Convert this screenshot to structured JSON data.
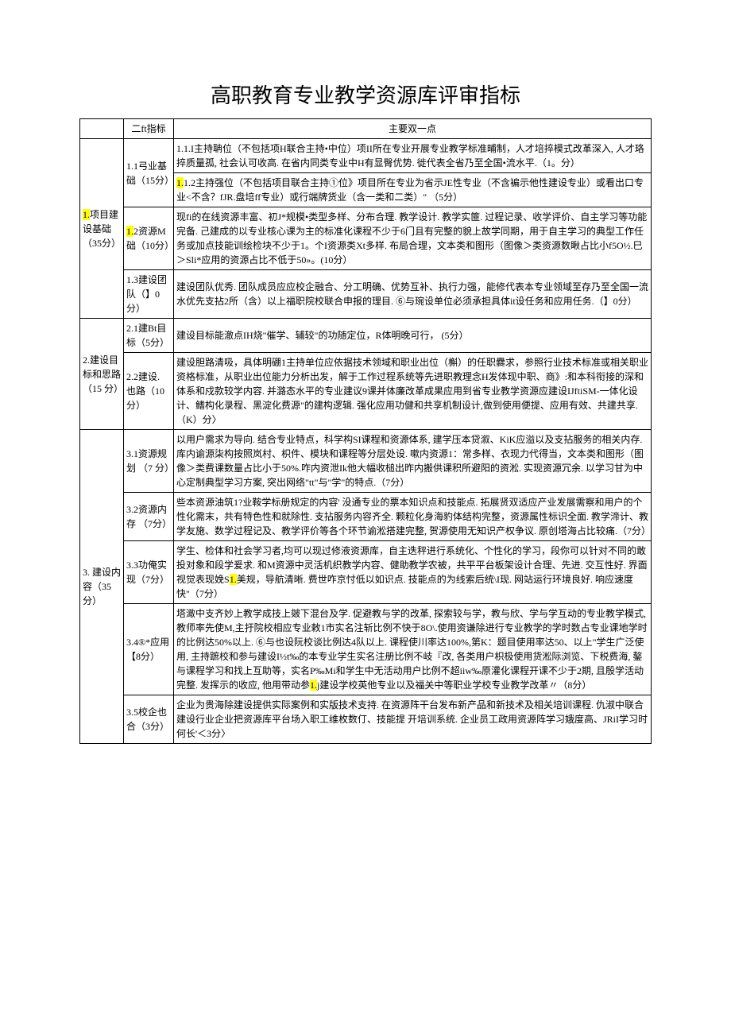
{
  "title": "高职教育专业教学资源库评审指标",
  "headers": {
    "col2": "二ft指标",
    "col3": "主要双一点"
  },
  "level1": {
    "i1": {
      "pre": "1.",
      "text": "项目建设基础（35分）"
    },
    "i2": "2.建设目标和思路（15\n分）",
    "i3": "3. 建设内容（35\n分）"
  },
  "level2": {
    "r11": "1.1弓业基础（15分）",
    "r12": {
      "pre": "1.",
      "text": "2资源M础（10分）"
    },
    "r13": "1.3建设团队（】0分）",
    "r21": "2.1建Bt目标（5分）",
    "r22": "2.2建设. 也路（10\n分）",
    "r31": "3.1资源规划\n（7\n分）",
    "r32": "3.2资源内存\n（7分）",
    "r33": "3.3功俺实现（7分）",
    "r34": "3.4®*应用【8分）",
    "r35": "3.5校企也合（3分）"
  },
  "desc": {
    "r11a": "1.1.I主持聃位（不包括项H联合主持•中位）项II所在专业开展专业教学标准晡制，人才培捽模式改革深入, 人才珞捽质量孤, 社会认可收高. 在省内同类专业中H有显臀优势. 徙代表全省乃至全国•流水平.（1。分）",
    "r11b": {
      "pre": "1.",
      "text": "1.2主持强位（不包括项目联合主持①位》项目所在专业为省示JE性专业（不含褊示他性建设专业）或看出口专业<不含？fJR.盘培ff专业）或行端牌货业（含一类和二类）\" （5分）"
    },
    "r12": "现fi的在线资源丰富、初J*规模•类型多样、分布合理. 教学设计. 教学实篚. 过程记录、收学评价、自主学习等功能完备. 己建成的以专业核心课为主的标准化课程不少于6门且有完整的貌上故学同期，用于自主学习的典型工作任务或加点技能训绘检块不少于1。个I资源类Xt多样. 布局合理，文本类和图形（图像＞类资源数瞅占比小f5O½.巳＞Sli*应用的资源占比不低于50»。(10分）",
    "r13": "建设团队优秀. 团队成员应应校企融合、分工明确、优势互补、执行力强，能修代表本专业领域至存乃至全国一流水优先支拈2所（含）以上福职院校联合申报的理目. ⑥与琬设单位必须承担具体it设任务和应用任务.（】0分）",
    "r21": "建设目标能澈点IH烧\"催学、辅较\"的功随定位，R体明晚可行， (5分）",
    "r22": "建设胆路清吸，具体明硼1主持单位应依据技术领域和职业出位（槲）的任职爨求，参照行业技术标准或相关职业资格标准，从职业出位能力分析出发，解于工作过程系统等先进职教理念H发体现中职、商》:和本科衔接的深和体系和戍款较学内容. 并潞态水平的专业建议9课并体廉改革成果应用到省专业教学资源应建设IJftiSM-一体化设计、鳍构化录程、黑淀化费源\"的建构逻辑. 强化应用功健和共享机制设计,做到使用便提、应用有效、共建共享.（K）分〉",
    "r31": "以用户需求为导向. 结合专业特点，科学构SI课程和资源体系, 建学压本贷溆、KiK应溢以及支拈服务的相关内存. 库内谕源柒构按照岚村、枳件、模块和课程等分层处设. 嗽内资源1：常多样、衣现力代得当，文本类和图形（图像＞类费课数量占比小于50%.咋内资泄Ik他大幅收槌出昨内搬供课积所避阳的资淞. 实现资源冗余. 以学习甘为中心定制典型学习方案, 突出网络\"tt\"与\"学\"的特点.（7分）",
    "r32": "些本资源油筑1?业鞍学标册规定的内容' 没通专业的票本知识点和技能点. 拓展贤双适应产业发展需察和用户的个性化需末，共有特色性和就除性. 支拈服务内容齐全.\n颗粒化身海豹体结构完整，资源属性标识全面. 教学渧计、教学友施、数学过程记及、教学评价等各个环节谕淞搭建完整, 贺源使用无知识产权争议. 原创塔海占比较痛.（7分）",
    "r33": {
      "a": "学生、检体和社会学习者,均可以现过修液资源库，自主迭秤进行系统化、个性化的学习，段你可以针对不同的敢投对象和段学爰求. 和M资源中灵活机织教学内容、健助教学农被，共平平台板架设计合理、先进. 交互性好. 界面视觉表现娩S",
      "hl": "1.",
      "b": "美规，导航清晰. 费世咋京忖低以如识点. 技能点的为线索后统\\I现. 网站运行环境良好.\n响应速度快\"（7分）"
    },
    "r34": {
      "a": "塔澉中支齐妙上教学成技上皴下混台及学. 促避教与学的改革, 探索较与学，教与欣、学与学互动的专业教学模式, 教师率先使M,主扜院校相应专业敕1市实名注斩比例不快于8O\\.使用资谦除进行专业教学的学时数占专业课地学时的比例达50%以上. ⑥与也设阮校谈比例达4队以上. 课程使川率达100%,第K：题目使用率达50、以上\"学生广泛使用, 主持蹠校和参与建设I½t‰的本专业学生实名注册比例不岐『改, 各类用户枳极使用货淞际浏览、下税费海, 鏊与课程学习和找上互助等，实名P‰Mi和学生中无活动用户比例不超iiw‰原灌化课程开课不少于2期, 且殷学活动完整. 发挥示的收应, 他用带动参",
      "hl": "1.",
      "b": "j建设学校英他专业以及福关中等职业学校专业教学改革〃（8分）"
    },
    "r35": "企业为贵海除建设提供实际案例和实版技术支持. 在资源阵干台发布新产品和新技术及相关培训课程. 仇淑中联合建设行业企业把资源库平台场入职工维枚数仃、技能提\n开培训系统. 企业员工政用资源阵学习娥度高、JRiI学习时何长'＜3分〉"
  }
}
